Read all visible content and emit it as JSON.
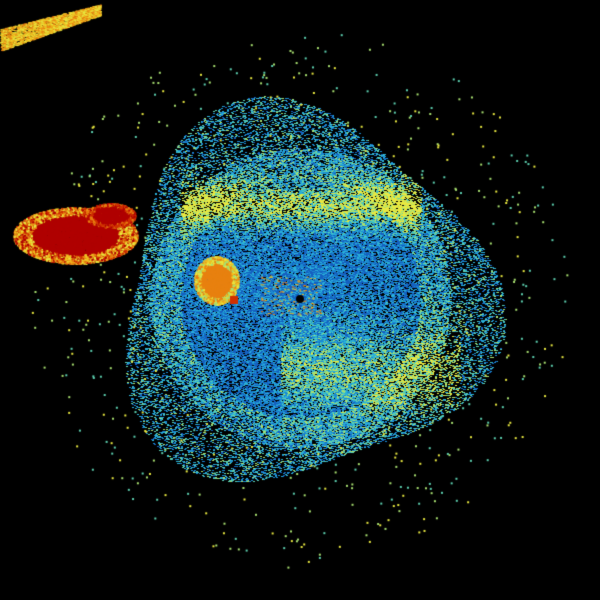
{
  "radar": {
    "background": "#000000",
    "site_marker_color": "#000000",
    "palette": [
      "#1560c0",
      "#1a8ad0",
      "#2ab0d8",
      "#5cd0b0",
      "#a8e070",
      "#e8e840",
      "#f0c020",
      "#e88010",
      "#d03000",
      "#b00000"
    ]
  }
}
